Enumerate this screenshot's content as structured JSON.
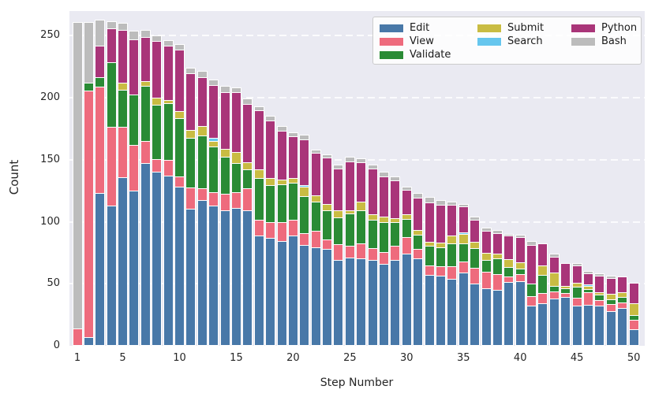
{
  "figure": {
    "kind": "stacked-bar-chart-screenshot",
    "plot_bg_color": "#eaeaf2",
    "grid_color": "#ffffff",
    "text_color": "#262626"
  },
  "chart_data": {
    "type": "bar",
    "stacked": true,
    "title": "",
    "xlabel": "Step Number",
    "ylabel": "Count",
    "ylim": [
      0,
      270
    ],
    "yticks": [
      0,
      50,
      100,
      150,
      200,
      250
    ],
    "xticks": [
      1,
      5,
      10,
      15,
      20,
      25,
      30,
      35,
      40,
      45,
      50
    ],
    "categories": [
      1,
      2,
      3,
      4,
      5,
      6,
      7,
      8,
      9,
      10,
      11,
      12,
      13,
      14,
      15,
      16,
      17,
      18,
      19,
      20,
      21,
      22,
      23,
      24,
      25,
      26,
      27,
      28,
      29,
      30,
      31,
      32,
      33,
      34,
      35,
      36,
      37,
      38,
      39,
      40,
      41,
      42,
      43,
      44,
      45,
      46,
      47,
      48,
      49,
      50
    ],
    "grid": "horizontal-dashed-white",
    "legend_position": "upper-right",
    "legend_columns": [
      [
        0,
        1,
        2
      ],
      [
        3,
        4
      ],
      [
        5,
        6
      ]
    ],
    "series": [
      {
        "name": "Edit",
        "color": "#4878a8",
        "values": [
          0,
          6,
          122,
          112,
          135,
          124,
          146,
          139,
          136,
          127,
          109,
          116,
          112,
          108,
          110,
          108,
          88,
          86,
          83,
          88,
          80,
          78,
          77,
          68,
          70,
          69,
          68,
          65,
          68,
          73,
          69,
          56,
          55,
          53,
          58,
          49,
          45,
          44,
          50,
          51,
          31,
          33,
          37,
          38,
          31,
          32,
          31,
          27,
          29,
          12
        ]
      },
      {
        "name": "View",
        "color": "#ee6b7d",
        "values": [
          13,
          198,
          85,
          63,
          40,
          36,
          17,
          10,
          12,
          8,
          17,
          9,
          10,
          13,
          12,
          17,
          12,
          12,
          15,
          12,
          9,
          13,
          7,
          12,
          9,
          12,
          9,
          9,
          11,
          13,
          7,
          7,
          7,
          9,
          8,
          12,
          13,
          12,
          4,
          5,
          7,
          8,
          5,
          3,
          6,
          9,
          4,
          5,
          4,
          7
        ]
      },
      {
        "name": "Validate",
        "color": "#2a8b35",
        "values": [
          0,
          6,
          7,
          51,
          29,
          40,
          44,
          43,
          45,
          46,
          39,
          42,
          36,
          29,
          23,
          15,
          33,
          29,
          30,
          29,
          29,
          23,
          23,
          21,
          25,
          26,
          22,
          23,
          18,
          14,
          11,
          15,
          15,
          18,
          14,
          15,
          9,
          12,
          7,
          4,
          10,
          14,
          4,
          3,
          8,
          2,
          4,
          3,
          4,
          3
        ]
      },
      {
        "name": "Submit",
        "color": "#c9bc43",
        "values": [
          0,
          0,
          0,
          0,
          5,
          0,
          3,
          5,
          2,
          5,
          6,
          7,
          4,
          6,
          8,
          5,
          6,
          5,
          3,
          3,
          7,
          4,
          4,
          5,
          2,
          6,
          4,
          4,
          3,
          3,
          3,
          3,
          3,
          6,
          7,
          5,
          5,
          3,
          6,
          4,
          0,
          7,
          10,
          1,
          3,
          2,
          1,
          4,
          3,
          9
        ]
      },
      {
        "name": "Search",
        "color": "#66c6ee",
        "values": [
          0,
          0,
          0,
          0,
          0,
          0,
          0,
          0,
          0,
          0,
          0,
          0,
          2,
          0,
          0,
          0,
          0,
          0,
          0,
          0,
          1,
          0,
          0,
          0,
          0,
          0,
          0,
          0,
          0,
          0,
          0,
          0,
          0,
          0,
          1,
          0,
          0,
          0,
          0,
          0,
          0,
          0,
          0,
          0,
          0,
          1,
          0,
          0,
          0,
          0
        ]
      },
      {
        "name": "Python",
        "color": "#a93579",
        "values": [
          0,
          0,
          25,
          27,
          42,
          44,
          35,
          45,
          43,
          49,
          45,
          39,
          42,
          45,
          48,
          46,
          47,
          46,
          39,
          33,
          36,
          34,
          37,
          33,
          39,
          31,
          36,
          32,
          30,
          19,
          26,
          31,
          30,
          24,
          20,
          17,
          17,
          16,
          18,
          20,
          30,
          17,
          12,
          18,
          13,
          8,
          13,
          12,
          12,
          16
        ]
      },
      {
        "name": "Bash",
        "color": "#bcbcbc",
        "values": [
          246,
          48,
          20,
          5,
          5,
          6,
          5,
          4,
          4,
          4,
          4,
          4,
          4,
          4,
          3,
          4,
          3,
          3,
          3,
          3,
          3,
          2,
          2,
          3,
          3,
          3,
          3,
          3,
          2,
          2,
          3,
          4,
          3,
          2,
          1,
          2,
          2,
          2,
          1,
          1,
          3,
          0,
          2,
          0,
          1,
          1,
          1,
          1,
          0,
          0
        ]
      }
    ]
  }
}
